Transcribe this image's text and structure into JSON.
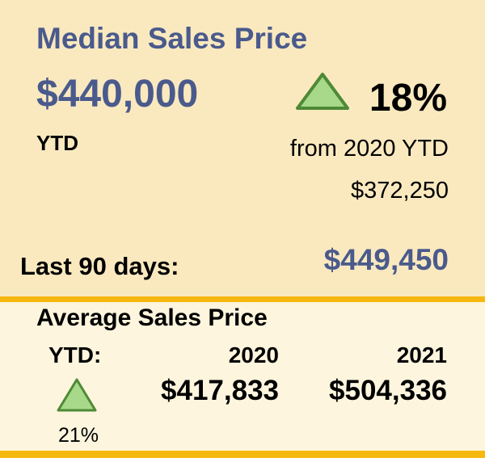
{
  "median": {
    "title": "Median Sales Price",
    "value": "$440,000",
    "period": "YTD",
    "change": "18%",
    "comparison_label": "from 2020 YTD",
    "prior_value": "$372,250",
    "last_90_label": "Last 90 days:",
    "last_90_value": "$449,450"
  },
  "average": {
    "title": "Average Sales Price",
    "period": "YTD:",
    "columns": [
      "2020",
      "2021"
    ],
    "values": [
      "$417,833",
      "$504,336"
    ],
    "change": "21%"
  }
}
